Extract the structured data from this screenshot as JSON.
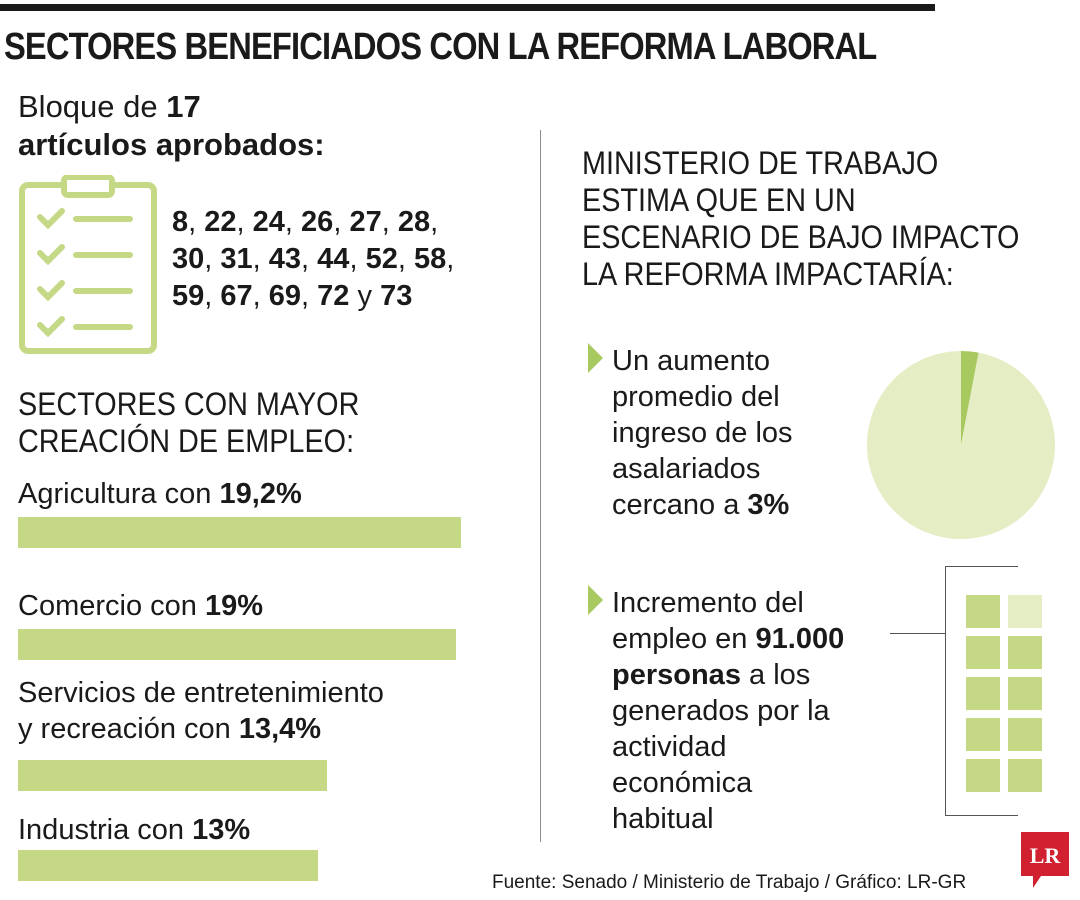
{
  "title": "SECTORES BENEFICIADOS CON LA REFORMA LABORAL",
  "bloque": {
    "prefix": "Bloque de ",
    "count": "17",
    "line2": "artículos aprobados:"
  },
  "articles": [
    "8",
    "22",
    "24",
    "26",
    "27",
    "28",
    "30",
    "31",
    "43",
    "44",
    "52",
    "58",
    "59",
    "67",
    "69",
    "72",
    "73"
  ],
  "articles_joiner": "y",
  "sectors_heading": [
    "SECTORES CON MAYOR",
    "CREACIÓN DE EMPLEO:"
  ],
  "ministerio_heading": [
    "MINISTERIO DE TRABAJO",
    "ESTIMA QUE EN UN",
    "ESCENARIO DE BAJO IMPACTO",
    "LA REFORMA IMPACTARÍA:"
  ],
  "item1": {
    "lines": [
      "Un aumento",
      "promedio del",
      "ingreso de los",
      "asalariados"
    ],
    "last_prefix": "cercano a ",
    "value": "3%"
  },
  "item2": {
    "line1": "Incremento del",
    "line2_prefix": "empleo en ",
    "value": "91.000",
    "line3_bold": "personas",
    "line3_rest": " a los",
    "rest": [
      "generados por la",
      "actividad",
      "económica",
      "habitual"
    ]
  },
  "source": "Fuente: Senado / Ministerio de Trabajo / Gráfico: LR-GR",
  "logo_text": "LR",
  "colors": {
    "bar": "#c5d886",
    "pale": "#e5edc4",
    "accent": "#a8c860",
    "logo": "#d1202f"
  },
  "chart_data": [
    {
      "type": "bar",
      "orientation": "horizontal",
      "categories": [
        "Agricultura con",
        "Comercio con",
        "Servicios de entretenimiento y recreación con",
        "Industria con"
      ],
      "label_lines": [
        [
          "Agricultura con "
        ],
        [
          "Comercio con "
        ],
        [
          "Servicios de entretenimiento",
          "y recreación con "
        ],
        [
          "Industria con "
        ]
      ],
      "value_labels": [
        "19,2%",
        "19%",
        "13,4%",
        "13%"
      ],
      "values": [
        19.2,
        19,
        13.4,
        13
      ],
      "xlim": [
        0,
        19.2
      ]
    },
    {
      "type": "pie",
      "values": [
        3,
        97
      ],
      "value_label": "3%"
    }
  ]
}
